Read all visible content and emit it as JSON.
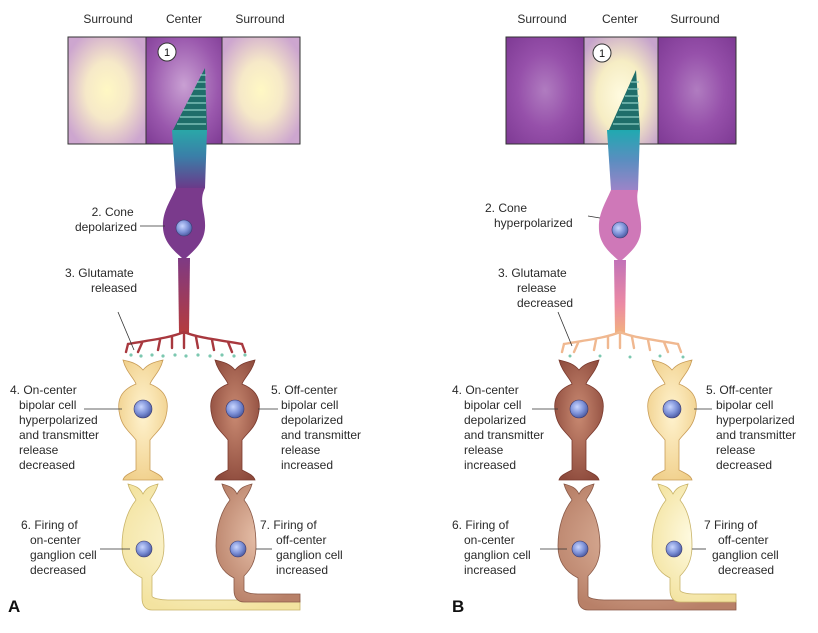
{
  "panels": [
    {
      "letter": "A",
      "header": {
        "left": "Surround",
        "center": "Center",
        "right": "Surround"
      },
      "marker": "1",
      "labels": {
        "cone": [
          "2. Cone",
          "depolarized"
        ],
        "glutamate": [
          "3. Glutamate",
          "released"
        ],
        "on_bipolar": [
          "4. On-center",
          "bipolar cell",
          "hyperpolarized",
          "and transmitter",
          "release",
          "decreased"
        ],
        "off_bipolar": [
          "5. Off-center",
          "bipolar cell",
          "depolarized",
          "and transmitter",
          "release",
          "increased"
        ],
        "on_ganglion": [
          "6. Firing of",
          "on-center",
          "ganglion cell",
          "decreased"
        ],
        "off_ganglion": [
          "7. Firing of",
          "off-center",
          "ganglion cell",
          "increased"
        ]
      }
    },
    {
      "letter": "B",
      "header": {
        "left": "Surround",
        "center": "Center",
        "right": "Surround"
      },
      "marker": "1",
      "labels": {
        "cone": [
          "2. Cone",
          "hyperpolarized"
        ],
        "glutamate": [
          "3. Glutamate",
          "release",
          "decreased"
        ],
        "on_bipolar": [
          "4. On-center",
          "bipolar cell",
          "depolarized",
          "and transmitter",
          "release",
          "increased"
        ],
        "off_bipolar": [
          "5. Off-center",
          "bipolar cell",
          "hyperpolarized",
          "and transmitter",
          "release",
          "decreased"
        ],
        "on_ganglion": [
          "6. Firing of",
          "on-center",
          "ganglion cell",
          "increased"
        ],
        "off_ganglion": [
          "7 Firing of",
          "off-center",
          "ganglion cell",
          "decreased"
        ]
      }
    }
  ],
  "colors": {
    "purple": "#8a3f9e",
    "light_yellow": "#fff6c0",
    "cone_teal": "#1f9aa6",
    "cone_purple_a": "#7a3a8c",
    "axon_red_a": "#9c3048",
    "cone_pink_b": "#d86aa8",
    "axon_orange_b": "#efa070",
    "cell_pale": "#f9e2a8",
    "cell_brown": "#a8604e",
    "ganglion_pale": "#fbf3c0",
    "ganglion_tan": "#cf9a82",
    "nucleus": "#7b8fd6",
    "vesicle": "#7cc8b0"
  }
}
